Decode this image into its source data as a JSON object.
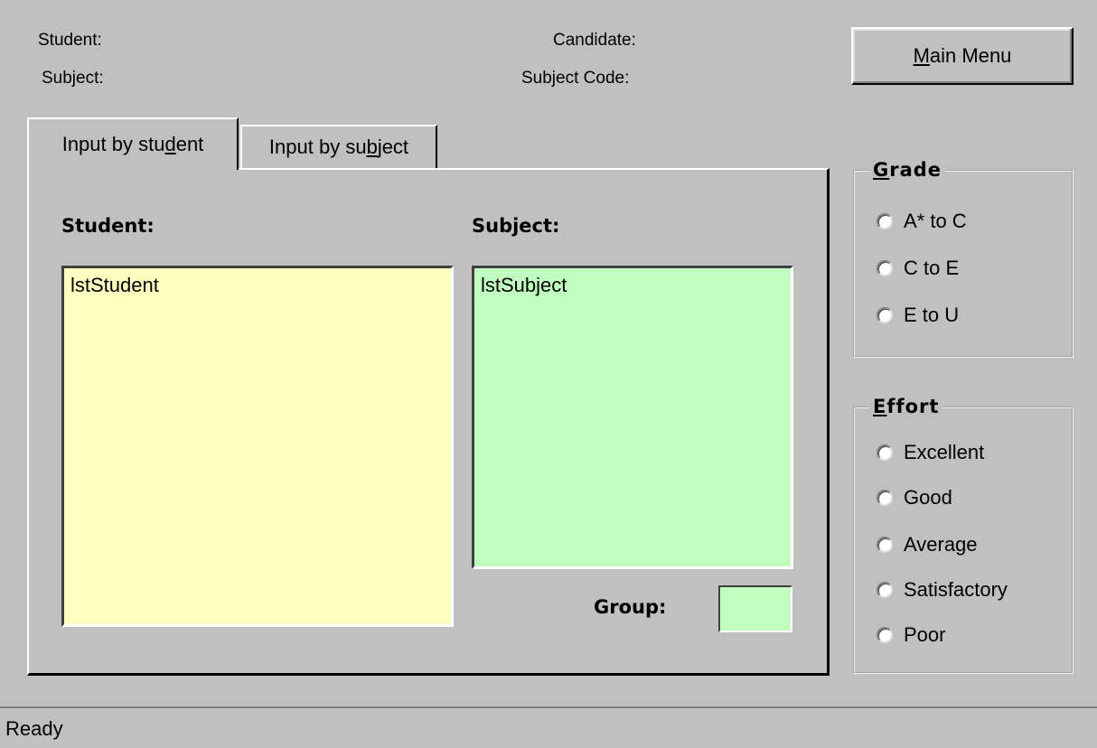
{
  "header": {
    "student_label": "Student:",
    "subject_label": "Subject:",
    "candidate_label": "Candidate:",
    "subject_code_label": "Subject Code:"
  },
  "main_menu": {
    "underline": "M",
    "rest": "ain Menu"
  },
  "tabs": [
    {
      "pre": "Input by stu",
      "underline": "d",
      "post": "ent",
      "active": true
    },
    {
      "pre": "Input by su",
      "underline": "b",
      "post": "ject",
      "active": false
    }
  ],
  "panel": {
    "student_heading": "Student:",
    "subject_heading": "Subject:",
    "student_list_item": "lstStudent",
    "subject_list_item": "lstSubject",
    "group_label": "Group:"
  },
  "grade": {
    "title_underline": "G",
    "title_rest": "rade",
    "options": [
      "A* to C",
      "C to E",
      "E to U"
    ]
  },
  "effort": {
    "title_underline": "E",
    "title_rest": "ffort",
    "options": [
      "Excellent",
      "Good",
      "Average",
      "Satisfactory",
      "Poor"
    ]
  },
  "status": {
    "text": "Ready"
  },
  "colors": {
    "window_bg": "#c0c0c0",
    "student_list_bg": "#ffffc0",
    "subject_list_bg": "#c0ffc0"
  }
}
